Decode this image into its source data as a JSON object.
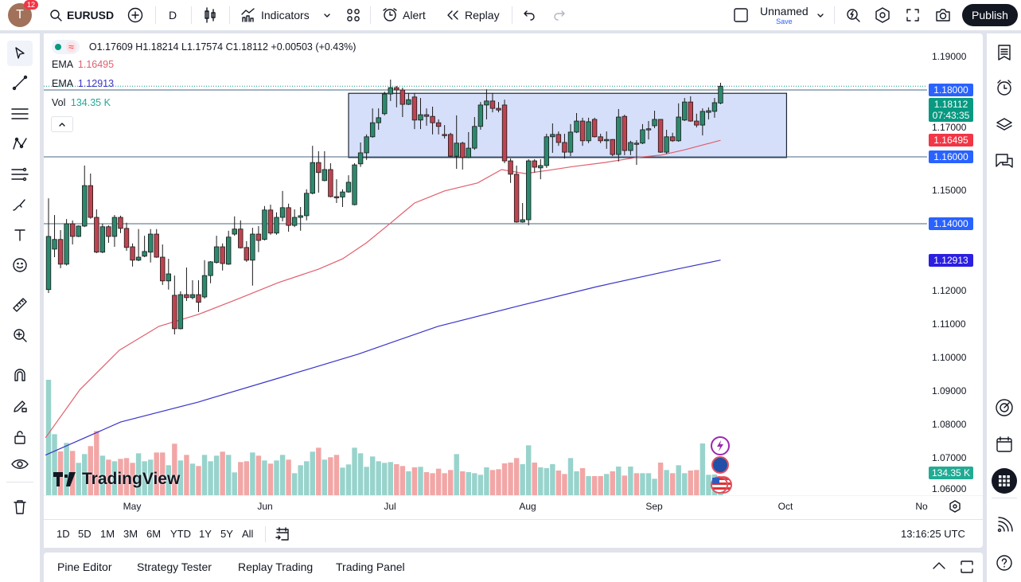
{
  "topbar": {
    "avatar_letter": "T",
    "notification_count": "12",
    "symbol": "EURUSD",
    "interval": "D",
    "indicators_label": "Indicators",
    "alert_label": "Alert",
    "replay_label": "Replay",
    "layout_name": "Unnamed",
    "layout_save": "Save",
    "publish_label": "Publish"
  },
  "legend": {
    "open_prefix": "O",
    "open": "1.17609",
    "high_prefix": "H",
    "high": "1.18214",
    "low_prefix": "L",
    "low": "1.17574",
    "close_prefix": "C",
    "close": "1.18112",
    "change": "+0.00503",
    "change_pct": "(+0.43%)",
    "ema1_label": "EMA",
    "ema1_value": "1.16495",
    "ema2_label": "EMA",
    "ema2_value": "1.12913",
    "vol_label": "Vol",
    "vol_value": "134.35 K"
  },
  "price_axis": {
    "ticks": [
      "1.19000",
      "1.17000",
      "1.15000",
      "1.12000",
      "1.11000",
      "1.10000",
      "1.09000",
      "1.08000",
      "1.07000",
      "1.06000"
    ],
    "last_price": "1.18112",
    "countdown": "07:43:35",
    "labels": [
      {
        "text": "1.18000",
        "price": 1.18,
        "color": "#2962ff"
      },
      {
        "text": "1.16495",
        "price": 1.16495,
        "color": "#f23645"
      },
      {
        "text": "1.16000",
        "price": 1.16,
        "color": "#2962ff"
      },
      {
        "text": "1.14000",
        "price": 1.14,
        "color": "#2962ff"
      },
      {
        "text": "1.12913",
        "price": 1.12913,
        "color": "#2b1fe0"
      }
    ],
    "volume_label": "134.35 K"
  },
  "time_axis": {
    "labels": [
      "May",
      "Jun",
      "Jul",
      "Aug",
      "Sep",
      "Oct",
      "No"
    ]
  },
  "range_bar": {
    "ranges": [
      "1D",
      "5D",
      "1M",
      "3M",
      "6M",
      "YTD",
      "1Y",
      "5Y",
      "All"
    ],
    "clock": "13:16:25 UTC"
  },
  "bottom_panel": {
    "tabs": [
      "Pine Editor",
      "Strategy Tester",
      "Replay Trading",
      "Trading Panel"
    ]
  },
  "watermark": "TradingView",
  "colors": {
    "up": "#2a8a6e",
    "down": "#c0434f",
    "vol_up": "#98d3cc",
    "vol_down": "#f2a6a6",
    "ema_fast": "#e0606e",
    "ema_slow": "#3a35c8",
    "last_price": "#089981",
    "drawing_line": "#4a6484",
    "box_fill": "#d2dcfa"
  },
  "chart_data": {
    "type": "candlestick",
    "symbol": "EURUSD",
    "interval": "D",
    "ylim": [
      1.0575,
      1.1969
    ],
    "candles_ohlc": [
      [
        1.1203,
        1.1476,
        1.1193,
        1.1362
      ],
      [
        1.1324,
        1.1426,
        1.13,
        1.1353
      ],
      [
        1.1353,
        1.1381,
        1.1267,
        1.1279
      ],
      [
        1.1279,
        1.1414,
        1.1275,
        1.14
      ],
      [
        1.14,
        1.141,
        1.1338,
        1.1362
      ],
      [
        1.1362,
        1.1395,
        1.136,
        1.1393
      ],
      [
        1.1393,
        1.1574,
        1.139,
        1.1514
      ],
      [
        1.1514,
        1.155,
        1.1415,
        1.1419
      ],
      [
        1.1419,
        1.1443,
        1.1312,
        1.1315
      ],
      [
        1.1315,
        1.14,
        1.1312,
        1.1391
      ],
      [
        1.1391,
        1.1395,
        1.1343,
        1.1362
      ],
      [
        1.1362,
        1.1426,
        1.1331,
        1.1419
      ],
      [
        1.1419,
        1.1424,
        1.1372,
        1.1386
      ],
      [
        1.1386,
        1.1403,
        1.1319,
        1.1329
      ],
      [
        1.1331,
        1.1341,
        1.1272,
        1.1291
      ],
      [
        1.1291,
        1.1384,
        1.1288,
        1.13
      ],
      [
        1.1303,
        1.1364,
        1.13,
        1.1317
      ],
      [
        1.1315,
        1.1384,
        1.1284,
        1.1369
      ],
      [
        1.1369,
        1.1384,
        1.1298,
        1.13
      ],
      [
        1.13,
        1.1338,
        1.1217,
        1.1229
      ],
      [
        1.1229,
        1.1295,
        1.1203,
        1.125
      ],
      [
        1.1186,
        1.1245,
        1.1069,
        1.1086
      ],
      [
        1.1086,
        1.1198,
        1.1084,
        1.1188
      ],
      [
        1.1188,
        1.1269,
        1.1169,
        1.1179
      ],
      [
        1.1179,
        1.1231,
        1.1174,
        1.1188
      ],
      [
        1.1188,
        1.1231,
        1.1136,
        1.1165
      ],
      [
        1.1181,
        1.1291,
        1.1176,
        1.1245
      ],
      [
        1.1245,
        1.1288,
        1.1222,
        1.1286
      ],
      [
        1.1284,
        1.1364,
        1.1281,
        1.1331
      ],
      [
        1.1331,
        1.1341,
        1.126,
        1.1281
      ],
      [
        1.1279,
        1.1379,
        1.1277,
        1.136
      ],
      [
        1.1369,
        1.1422,
        1.1364,
        1.1384
      ],
      [
        1.1384,
        1.141,
        1.1326,
        1.1328
      ],
      [
        1.1329,
        1.1348,
        1.1286,
        1.1291
      ],
      [
        1.1291,
        1.1388,
        1.1215,
        1.1369
      ],
      [
        1.1369,
        1.1393,
        1.1315,
        1.135
      ],
      [
        1.1353,
        1.1453,
        1.135,
        1.1441
      ],
      [
        1.1441,
        1.1457,
        1.1367,
        1.1372
      ],
      [
        1.1372,
        1.1434,
        1.1367,
        1.1419
      ],
      [
        1.1419,
        1.1498,
        1.1407,
        1.1448
      ],
      [
        1.1448,
        1.146,
        1.1376,
        1.1395
      ],
      [
        1.1395,
        1.1443,
        1.139,
        1.1419
      ],
      [
        1.1419,
        1.145,
        1.1379,
        1.1424
      ],
      [
        1.1424,
        1.1503,
        1.141,
        1.1491
      ],
      [
        1.1491,
        1.1633,
        1.1488,
        1.1583
      ],
      [
        1.1583,
        1.1617,
        1.1493,
        1.1553
      ],
      [
        1.1529,
        1.1617,
        1.1527,
        1.1562
      ],
      [
        1.1562,
        1.1581,
        1.1479,
        1.1481
      ],
      [
        1.1481,
        1.1533,
        1.1462,
        1.148
      ],
      [
        1.148,
        1.1503,
        1.145,
        1.1495
      ],
      [
        1.1495,
        1.1545,
        1.1493,
        1.1524
      ],
      [
        1.1457,
        1.1581,
        1.1455,
        1.1576
      ],
      [
        1.1579,
        1.1643,
        1.157,
        1.1612
      ],
      [
        1.1612,
        1.1667,
        1.1591,
        1.166
      ],
      [
        1.166,
        1.1745,
        1.1657,
        1.1702
      ],
      [
        1.1702,
        1.1745,
        1.1681,
        1.1717
      ],
      [
        1.1729,
        1.1795,
        1.1724,
        1.1788
      ],
      [
        1.1788,
        1.1831,
        1.1767,
        1.1807
      ],
      [
        1.1807,
        1.1812,
        1.1748,
        1.18
      ],
      [
        1.18,
        1.1807,
        1.1719,
        1.1757
      ],
      [
        1.1757,
        1.1791,
        1.1755,
        1.1771
      ],
      [
        1.1779,
        1.1791,
        1.1683,
        1.171
      ],
      [
        1.171,
        1.1776,
        1.1683,
        1.1726
      ],
      [
        1.1726,
        1.1745,
        1.1693,
        1.1721
      ],
      [
        1.1721,
        1.175,
        1.1667,
        1.1702
      ],
      [
        1.1702,
        1.1712,
        1.1667,
        1.1691
      ],
      [
        1.1667,
        1.1695,
        1.1655,
        1.1666
      ],
      [
        1.1667,
        1.1672,
        1.16,
        1.1602
      ],
      [
        1.1602,
        1.1724,
        1.1564,
        1.1641
      ],
      [
        1.1641,
        1.1645,
        1.1562,
        1.1598
      ],
      [
        1.1598,
        1.1674,
        1.1596,
        1.1626
      ],
      [
        1.1626,
        1.1719,
        1.1621,
        1.1691
      ],
      [
        1.1691,
        1.1764,
        1.1681,
        1.1755
      ],
      [
        1.1755,
        1.1802,
        1.1712,
        1.1767
      ],
      [
        1.1767,
        1.1791,
        1.1733,
        1.1745
      ],
      [
        1.1745,
        1.1764,
        1.1733,
        1.174
      ],
      [
        1.1755,
        1.1771,
        1.1581,
        1.1588
      ],
      [
        1.1588,
        1.1595,
        1.1522,
        1.1548
      ],
      [
        1.1548,
        1.1574,
        1.1403,
        1.1405
      ],
      [
        1.1405,
        1.1462,
        1.1403,
        1.1412
      ],
      [
        1.1412,
        1.1593,
        1.1395,
        1.1588
      ],
      [
        1.1588,
        1.1593,
        1.1553,
        1.1569
      ],
      [
        1.1567,
        1.1593,
        1.1533,
        1.1574
      ],
      [
        1.1574,
        1.1669,
        1.1567,
        1.166
      ],
      [
        1.166,
        1.17,
        1.1612,
        1.1667
      ],
      [
        1.1667,
        1.1676,
        1.1633,
        1.1643
      ],
      [
        1.1643,
        1.1669,
        1.1595,
        1.1614
      ],
      [
        1.1614,
        1.1698,
        1.1602,
        1.1674
      ],
      [
        1.1674,
        1.1731,
        1.1671,
        1.1707
      ],
      [
        1.1707,
        1.1717,
        1.1633,
        1.1648
      ],
      [
        1.1648,
        1.1717,
        1.1641,
        1.1705
      ],
      [
        1.1712,
        1.1717,
        1.1658,
        1.166
      ],
      [
        1.166,
        1.1669,
        1.1641,
        1.1648
      ],
      [
        1.1648,
        1.1676,
        1.1624,
        1.1652
      ],
      [
        1.1652,
        1.1653,
        1.1602,
        1.1607
      ],
      [
        1.1607,
        1.1743,
        1.1586,
        1.1719
      ],
      [
        1.1721,
        1.1726,
        1.1605,
        1.1619
      ],
      [
        1.1619,
        1.1648,
        1.1605,
        1.1643
      ],
      [
        1.1641,
        1.165,
        1.1576,
        1.164
      ],
      [
        1.1641,
        1.1698,
        1.1638,
        1.1681
      ],
      [
        1.1683,
        1.1707,
        1.1652,
        1.1684
      ],
      [
        1.1693,
        1.1738,
        1.1686,
        1.1712
      ],
      [
        1.1712,
        1.1713,
        1.1612,
        1.1614
      ],
      [
        1.1614,
        1.1681,
        1.1609,
        1.166
      ],
      [
        1.166,
        1.1672,
        1.1645,
        1.1648
      ],
      [
        1.1648,
        1.176,
        1.1645,
        1.1719
      ],
      [
        1.171,
        1.1776,
        1.1707,
        1.1764
      ],
      [
        1.1764,
        1.1781,
        1.1705,
        1.1707
      ],
      [
        1.1707,
        1.1729,
        1.1688,
        1.1695
      ],
      [
        1.1695,
        1.1745,
        1.1664,
        1.1736
      ],
      [
        1.1733,
        1.1748,
        1.1712,
        1.1738
      ],
      [
        1.1736,
        1.1776,
        1.1717,
        1.1762
      ],
      [
        1.17609,
        1.18214,
        1.17574,
        1.18112
      ]
    ],
    "volume_k": [
      1305,
      690,
      495,
      591,
      501,
      366,
      465,
      555,
      726,
      447,
      402,
      384,
      411,
      420,
      366,
      474,
      384,
      402,
      483,
      483,
      339,
      582,
      393,
      456,
      357,
      330,
      456,
      384,
      447,
      492,
      456,
      258,
      375,
      384,
      483,
      447,
      393,
      357,
      393,
      456,
      402,
      249,
      339,
      384,
      492,
      537,
      402,
      429,
      456,
      312,
      348,
      537,
      474,
      321,
      438,
      384,
      366,
      375,
      351,
      330,
      270,
      315,
      321,
      261,
      249,
      300,
      249,
      285,
      465,
      270,
      261,
      249,
      231,
      315,
      285,
      294,
      360,
      369,
      420,
      351,
      564,
      369,
      315,
      306,
      351,
      279,
      240,
      420,
      270,
      306,
      216,
      216,
      216,
      240,
      270,
      324,
      222,
      324,
      249,
      249,
      249,
      186,
      369,
      285,
      249,
      339,
      249,
      279,
      285,
      585,
      231,
      234,
      134.35
    ],
    "ema_fast_points": [
      [
        0.5,
        1.076
      ],
      [
        6.2,
        1.0903
      ],
      [
        12.8,
        1.1022
      ],
      [
        19.4,
        1.1093
      ],
      [
        26,
        1.1129
      ],
      [
        32.7,
        1.1176
      ],
      [
        39.3,
        1.1224
      ],
      [
        46,
        1.1264
      ],
      [
        50,
        1.1295
      ],
      [
        54,
        1.1343
      ],
      [
        58,
        1.1402
      ],
      [
        62,
        1.1462
      ],
      [
        67,
        1.1498
      ],
      [
        72.5,
        1.1522
      ],
      [
        76.5,
        1.1562
      ],
      [
        80.4,
        1.155
      ],
      [
        84.4,
        1.156
      ],
      [
        88.4,
        1.1571
      ],
      [
        93.7,
        1.1583
      ],
      [
        99,
        1.1598
      ],
      [
        103,
        1.1605
      ],
      [
        107,
        1.1621
      ],
      [
        113,
        1.16495
      ]
    ],
    "ema_slow_points": [
      [
        0.5,
        1.0708
      ],
      [
        13,
        1.0807
      ],
      [
        26,
        1.0867
      ],
      [
        39.3,
        1.0938
      ],
      [
        52.6,
        1.101
      ],
      [
        65.9,
        1.1093
      ],
      [
        79.1,
        1.1153
      ],
      [
        92.4,
        1.1212
      ],
      [
        105.7,
        1.1264
      ],
      [
        113,
        1.12913
      ]
    ],
    "horizontal_lines": [
      1.18,
      1.16,
      1.14
    ],
    "rectangle": {
      "from_bar": 51,
      "to_bar": 124,
      "top": 1.179,
      "bottom": 1.1598
    },
    "last_price_line": 1.18112
  }
}
